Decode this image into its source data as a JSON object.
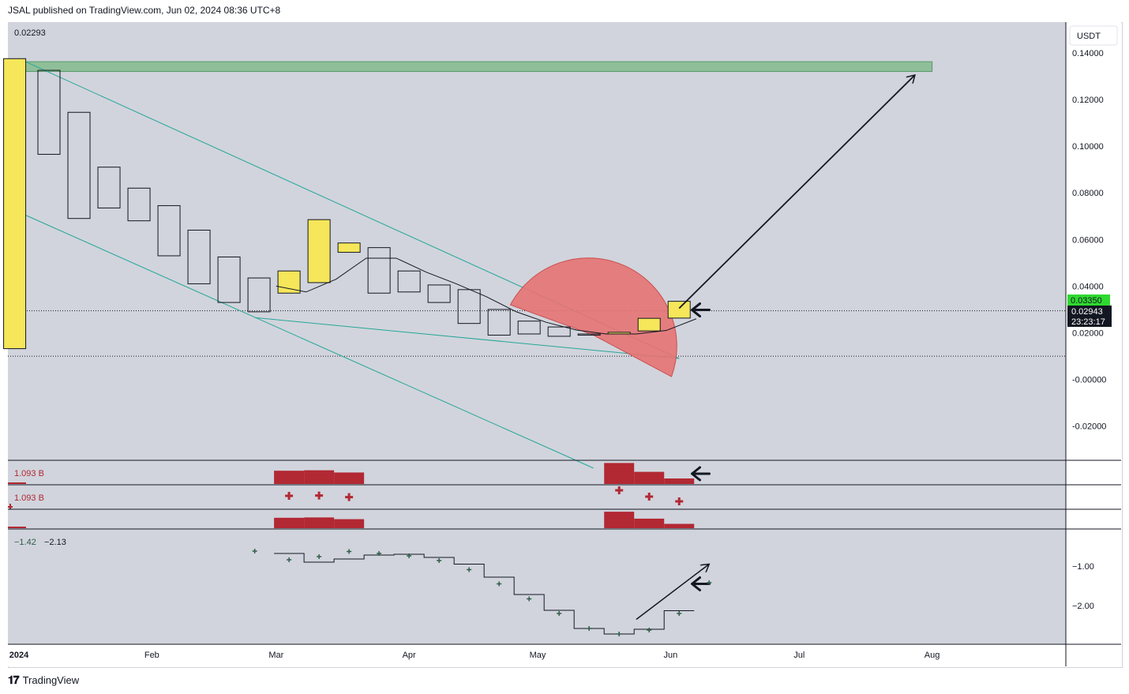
{
  "header": {
    "publisher_line": "JSAL published on TradingView.com, Jun 02, 2024 08:36 UTC+8"
  },
  "footer": {
    "brand": "TradingView"
  },
  "colors": {
    "background": "#d1d4dc",
    "panel_bg": "#ffffff",
    "bull_candle": "#f5e65a",
    "bear_candle": "#d1d4dc",
    "channel_line": "#26a69a",
    "target_zone": "#8fbf99",
    "arc": "#e57373",
    "volume_bar": "#b22833",
    "price_label_green": "#2fd92f",
    "price_label_black": "#131722",
    "plus_marker": "#2f5d4a"
  },
  "chart_data": [
    {
      "type": "candlestick",
      "title": "",
      "top_left_value": "0.02293",
      "currency": "USDT",
      "price_labels": {
        "last_price": "0.03350",
        "close": "0.02943",
        "countdown": "23:23:17"
      },
      "ylim": [
        -0.03,
        0.145
      ],
      "y_ticks": [
        "0.14000",
        "0.12000",
        "0.10000",
        "0.08000",
        "0.06000",
        "0.04000",
        "0.02000",
        "-0.00000",
        "-0.02000"
      ],
      "x_labels": [
        "2024",
        "Feb",
        "Mar",
        "Apr",
        "May",
        "Jun",
        "Jul",
        "Aug"
      ],
      "x_label_dates": [
        "2024-01-01",
        "2024-02-01",
        "2024-03-01",
        "2024-04-01",
        "2024-05-01",
        "2024-06-01",
        "2024-07-01",
        "2024-08-01"
      ],
      "candles": [
        {
          "date": "2023-12-31",
          "open": 0.0132,
          "close": 0.1375
        },
        {
          "date": "2024-01-08",
          "open": 0.1325,
          "close": 0.0965
        },
        {
          "date": "2024-01-15",
          "open": 0.1145,
          "close": 0.069
        },
        {
          "date": "2024-01-22",
          "open": 0.091,
          "close": 0.0735
        },
        {
          "date": "2024-01-29",
          "open": 0.082,
          "close": 0.068
        },
        {
          "date": "2024-02-05",
          "open": 0.0745,
          "close": 0.053
        },
        {
          "date": "2024-02-12",
          "open": 0.064,
          "close": 0.041
        },
        {
          "date": "2024-02-19",
          "open": 0.0525,
          "close": 0.033
        },
        {
          "date": "2024-02-26",
          "open": 0.0435,
          "close": 0.029
        },
        {
          "date": "2024-03-04",
          "open": 0.037,
          "close": 0.0465
        },
        {
          "date": "2024-03-11",
          "open": 0.0415,
          "close": 0.0685
        },
        {
          "date": "2024-03-18",
          "open": 0.0545,
          "close": 0.0585
        },
        {
          "date": "2024-03-25",
          "open": 0.0565,
          "close": 0.037
        },
        {
          "date": "2024-04-01",
          "open": 0.0465,
          "close": 0.0375
        },
        {
          "date": "2024-04-08",
          "open": 0.0405,
          "close": 0.033
        },
        {
          "date": "2024-04-15",
          "open": 0.0385,
          "close": 0.024
        },
        {
          "date": "2024-04-22",
          "open": 0.03,
          "close": 0.019
        },
        {
          "date": "2024-04-29",
          "open": 0.025,
          "close": 0.0195
        },
        {
          "date": "2024-05-06",
          "open": 0.0225,
          "close": 0.0185
        },
        {
          "date": "2024-05-13",
          "open": 0.0195,
          "close": 0.019
        },
        {
          "date": "2024-05-20",
          "open": 0.0195,
          "close": 0.0202
        },
        {
          "date": "2024-05-27",
          "open": 0.0208,
          "close": 0.0262
        },
        {
          "date": "2024-06-03",
          "open": 0.0263,
          "close": 0.0335
        }
      ],
      "ma_line": [
        {
          "date": "2024-03-01",
          "value": 0.04
        },
        {
          "date": "2024-03-08",
          "value": 0.0375
        },
        {
          "date": "2024-03-15",
          "value": 0.043
        },
        {
          "date": "2024-03-22",
          "value": 0.052
        },
        {
          "date": "2024-03-29",
          "value": 0.052
        },
        {
          "date": "2024-04-05",
          "value": 0.046
        },
        {
          "date": "2024-04-12",
          "value": 0.041
        },
        {
          "date": "2024-04-19",
          "value": 0.0355
        },
        {
          "date": "2024-04-26",
          "value": 0.029
        },
        {
          "date": "2024-05-03",
          "value": 0.0245
        },
        {
          "date": "2024-05-10",
          "value": 0.0212
        },
        {
          "date": "2024-05-17",
          "value": 0.0195
        },
        {
          "date": "2024-05-24",
          "value": 0.0195
        },
        {
          "date": "2024-05-31",
          "value": 0.021
        },
        {
          "date": "2024-06-07",
          "value": 0.026
        }
      ],
      "dotted_lines": [
        0.02943,
        0.00999
      ],
      "target_zone": [
        0.132,
        0.1362
      ],
      "annotations": {
        "upper_channel": [
          {
            "date": "2024-01-01",
            "value": 0.1375
          },
          {
            "date": "2024-06-03",
            "value": 0.009
          }
        ],
        "lower_channel": [
          {
            "date": "2023-12-31",
            "value": 0.0725
          },
          {
            "date": "2024-05-14",
            "value": -0.038
          }
        ],
        "wedge_bottom": [
          {
            "date": "2024-02-25",
            "value": 0.0265
          },
          {
            "date": "2024-06-03",
            "value": 0.009
          }
        ],
        "target_arrow": [
          {
            "date": "2024-06-03",
            "value": 0.0305
          },
          {
            "date": "2024-07-28",
            "value": 0.1305
          }
        ],
        "price_arrow_at": {
          "date": "2024-06-06",
          "value": 0.0298
        }
      }
    },
    {
      "type": "bar",
      "title": "",
      "value_label": "1.093 B",
      "bars": [
        {
          "date": "2024-03-04",
          "value": 0.6
        },
        {
          "date": "2024-03-11",
          "value": 0.62
        },
        {
          "date": "2024-03-18",
          "value": 0.52
        },
        {
          "date": "2024-05-20",
          "value": 0.95
        },
        {
          "date": "2024-05-27",
          "value": 0.55
        },
        {
          "date": "2024-06-03",
          "value": 0.25
        }
      ]
    },
    {
      "type": "scatter",
      "title": "",
      "value_label": "1.093 B",
      "points": [
        {
          "date": "2024-03-04",
          "value": 0.6
        },
        {
          "date": "2024-03-11",
          "value": 0.62
        },
        {
          "date": "2024-03-18",
          "value": 0.52
        },
        {
          "date": "2024-05-20",
          "value": 0.95
        },
        {
          "date": "2024-05-27",
          "value": 0.55
        },
        {
          "date": "2024-06-03",
          "value": 0.25
        }
      ]
    },
    {
      "type": "bar",
      "title": "",
      "bars": [
        {
          "date": "2024-03-04",
          "value": 0.6
        },
        {
          "date": "2024-03-11",
          "value": 0.62
        },
        {
          "date": "2024-03-18",
          "value": 0.52
        },
        {
          "date": "2024-05-20",
          "value": 0.95
        },
        {
          "date": "2024-05-27",
          "value": 0.55
        },
        {
          "date": "2024-06-03",
          "value": 0.25
        }
      ]
    },
    {
      "type": "line",
      "title": "",
      "value_labels": [
        "−1.42",
        "−2.13"
      ],
      "y_ticks": [
        "−1.00",
        "−2.00"
      ],
      "ylim": [
        -2.95,
        -0.25
      ],
      "step_line": [
        {
          "date": "2024-03-04",
          "value": -0.68
        },
        {
          "date": "2024-03-11",
          "value": -0.9
        },
        {
          "date": "2024-03-18",
          "value": -0.82
        },
        {
          "date": "2024-03-25",
          "value": -0.72
        },
        {
          "date": "2024-04-01",
          "value": -0.7
        },
        {
          "date": "2024-04-08",
          "value": -0.78
        },
        {
          "date": "2024-04-15",
          "value": -0.95
        },
        {
          "date": "2024-04-22",
          "value": -1.28
        },
        {
          "date": "2024-04-29",
          "value": -1.72
        },
        {
          "date": "2024-05-06",
          "value": -2.12
        },
        {
          "date": "2024-05-13",
          "value": -2.58
        },
        {
          "date": "2024-05-20",
          "value": -2.72
        },
        {
          "date": "2024-05-27",
          "value": -2.6
        },
        {
          "date": "2024-06-03",
          "value": -2.13
        }
      ],
      "markers": [
        {
          "date": "2024-02-25",
          "value": -0.62
        },
        {
          "date": "2024-03-04",
          "value": -0.84
        },
        {
          "date": "2024-03-11",
          "value": -0.76
        },
        {
          "date": "2024-03-18",
          "value": -0.63
        },
        {
          "date": "2024-03-25",
          "value": -0.68
        },
        {
          "date": "2024-04-01",
          "value": -0.74
        },
        {
          "date": "2024-04-08",
          "value": -0.86
        },
        {
          "date": "2024-04-15",
          "value": -1.09
        },
        {
          "date": "2024-04-22",
          "value": -1.45
        },
        {
          "date": "2024-04-29",
          "value": -1.83
        },
        {
          "date": "2024-05-06",
          "value": -2.2
        },
        {
          "date": "2024-05-13",
          "value": -2.58
        },
        {
          "date": "2024-05-20",
          "value": -2.72
        },
        {
          "date": "2024-05-27",
          "value": -2.62
        },
        {
          "date": "2024-06-03",
          "value": -2.2
        },
        {
          "date": "2024-06-10",
          "value": -1.42
        }
      ],
      "trend_arrow": [
        {
          "date": "2024-05-24",
          "value": -2.35
        },
        {
          "date": "2024-06-10",
          "value": -0.95
        }
      ],
      "arrow_at": {
        "date": "2024-06-06",
        "value": -1.45
      }
    }
  ]
}
